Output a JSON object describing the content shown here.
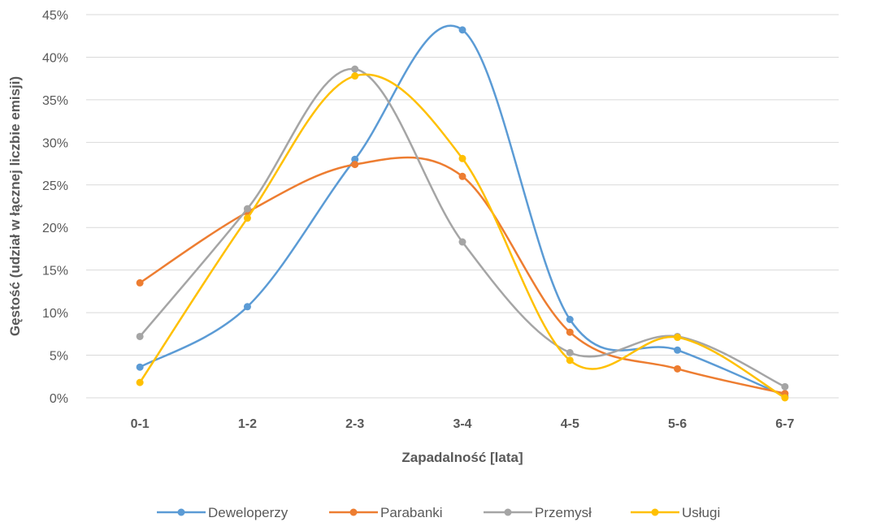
{
  "chart_data": {
    "type": "line",
    "title": "",
    "xlabel": "Zapadalność [lata]",
    "ylabel": "Gęstość (udział w łącznej liczbie emisji)",
    "categories": [
      "0-1",
      "1-2",
      "2-3",
      "3-4",
      "4-5",
      "5-6",
      "6-7"
    ],
    "ylim": [
      0,
      45
    ],
    "yticks": [
      "0%",
      "5%",
      "10%",
      "15%",
      "20%",
      "25%",
      "30%",
      "35%",
      "40%",
      "45%"
    ],
    "grid": true,
    "smooth": true,
    "legend_position": "bottom",
    "series": [
      {
        "name": "Deweloperzy",
        "color": "#5b9bd5",
        "values": [
          3.6,
          10.7,
          28.0,
          43.2,
          9.2,
          5.6,
          0.2
        ]
      },
      {
        "name": "Parabanki",
        "color": "#ed7d31",
        "values": [
          13.5,
          21.8,
          27.4,
          26.0,
          7.7,
          3.4,
          0.5
        ]
      },
      {
        "name": "Przemysł",
        "color": "#a5a5a5",
        "values": [
          7.2,
          22.2,
          38.6,
          18.3,
          5.3,
          7.2,
          1.3
        ]
      },
      {
        "name": "Usługi",
        "color": "#ffc000",
        "values": [
          1.8,
          21.1,
          37.8,
          28.1,
          4.4,
          7.1,
          0.0
        ]
      }
    ]
  }
}
